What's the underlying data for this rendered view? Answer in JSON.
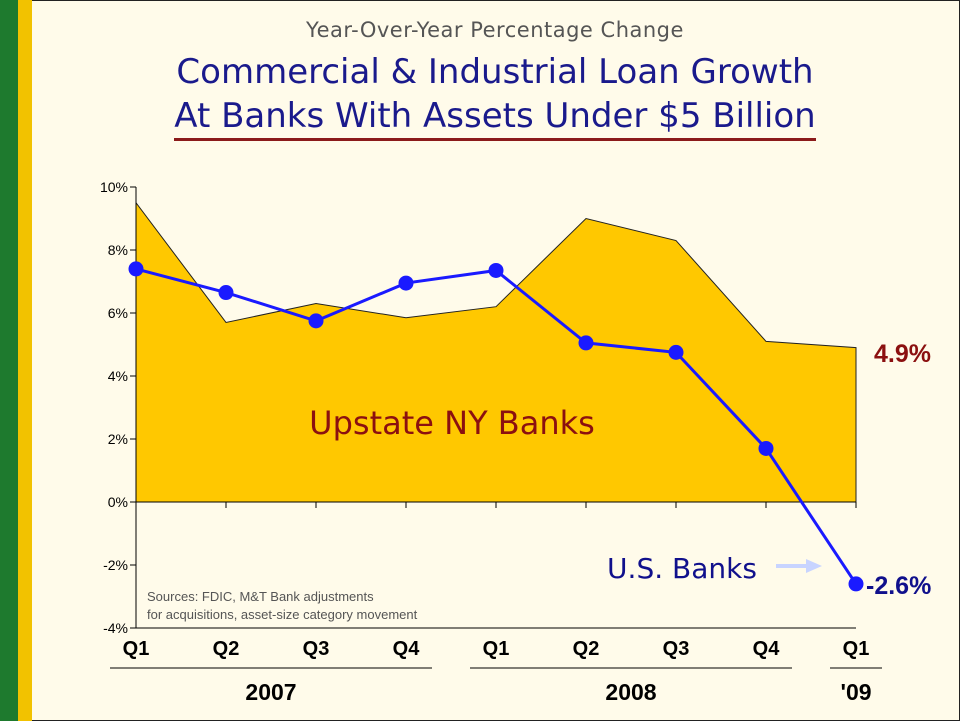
{
  "header": {
    "subtitle": "Year-Over-Year Percentage Change",
    "title_line1": "Commercial & Industrial Loan Growth",
    "title_line2": "At Banks With Assets Under $5 Billion"
  },
  "colors": {
    "area": "#ffc800",
    "line": "#1a1aff",
    "upstate_label": "#8b1010",
    "us_label": "#10108c"
  },
  "chart_data": {
    "type": "area",
    "ylim": [
      -4,
      10
    ],
    "yticks": [
      "10%",
      "8%",
      "6%",
      "4%",
      "2%",
      "0%",
      "-2%",
      "-4%"
    ],
    "categories": [
      "Q1",
      "Q2",
      "Q3",
      "Q4",
      "Q1",
      "Q2",
      "Q3",
      "Q4",
      "Q1"
    ],
    "years": [
      "2007",
      "2008",
      "'09"
    ],
    "series": [
      {
        "name": "Upstate NY Banks",
        "type": "area",
        "values": [
          9.5,
          5.7,
          6.3,
          5.85,
          6.2,
          9.0,
          8.3,
          5.1,
          4.9
        ]
      },
      {
        "name": "U.S. Banks",
        "type": "line",
        "values": [
          7.4,
          6.65,
          5.75,
          6.95,
          7.35,
          5.05,
          4.75,
          1.7,
          -2.6
        ]
      }
    ],
    "end_labels": {
      "upstate": "4.9%",
      "us": "-2.6%"
    },
    "annotation": "Sources:  FDIC, M&T Bank adjustments for acquisitions, asset-size category movement"
  }
}
